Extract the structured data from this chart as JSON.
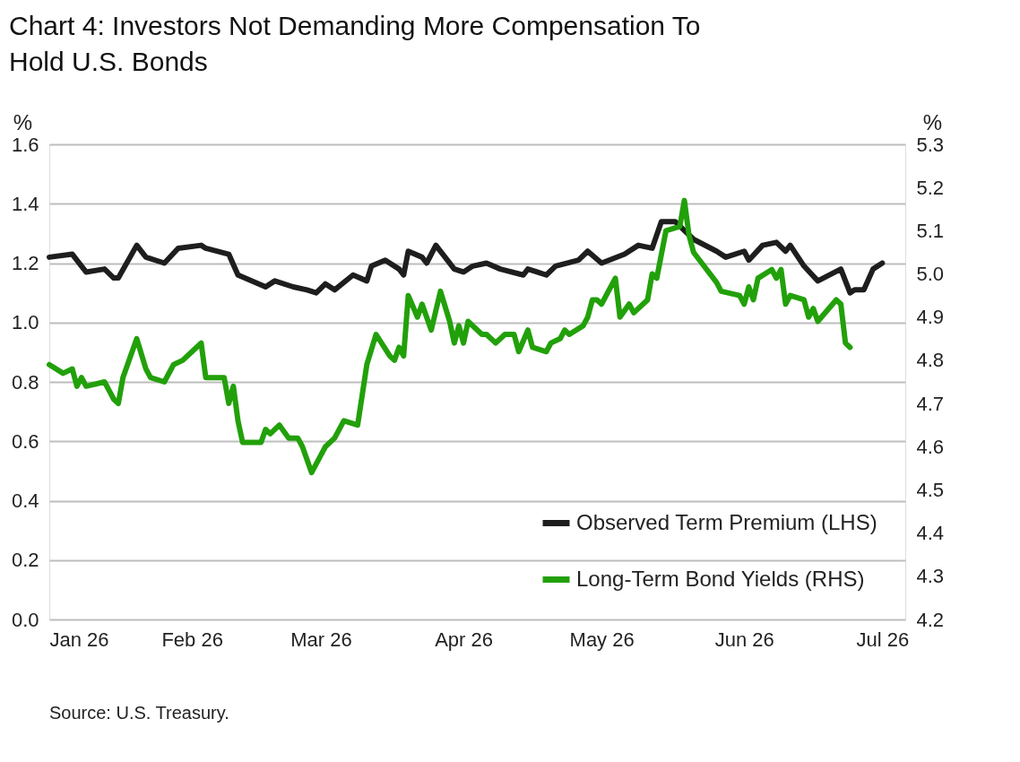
{
  "chart_data": {
    "type": "line",
    "title": "Chart 4: Investors Not Demanding More Compensation To Hold U.S. Bonds",
    "ylabel": "%",
    "y2label": "%",
    "annotations": [
      "Source: U.S. Treasury."
    ],
    "xlim": [
      "2026-01-01",
      "2026-07-06"
    ],
    "xticks": [
      {
        "value": "2026-01-01",
        "label": "Jan 26"
      },
      {
        "value": "2026-02-01",
        "label": "Feb 26"
      },
      {
        "value": "2026-03-01",
        "label": "Mar 26"
      },
      {
        "value": "2026-04-01",
        "label": "Apr 26"
      },
      {
        "value": "2026-05-01",
        "label": "May 26"
      },
      {
        "value": "2026-06-01",
        "label": "Jun 26"
      },
      {
        "value": "2026-07-01",
        "label": "Jul 26"
      }
    ],
    "ylim": [
      0,
      1.6
    ],
    "yticks": [
      {
        "value": 0,
        "label": "0.0"
      },
      0.2,
      0.4,
      0.6,
      0.8,
      {
        "value": 1,
        "label": "1.0"
      },
      1.2,
      1.4,
      1.6
    ],
    "y2lim": [
      4.2,
      5.3
    ],
    "y2ticks": [
      4.2,
      4.3,
      4.4,
      4.5,
      4.6,
      4.7,
      4.8,
      4.9,
      {
        "value": 5,
        "label": "5.0"
      },
      5.1,
      5.2,
      5.3
    ],
    "grid": "y",
    "legend": "bottom right",
    "line_style": "solid",
    "series": [
      {
        "name": "Observed Term Premium (LHS)",
        "color": "#1e1e1e",
        "type": "line",
        "x": [
          "2026-01-01",
          "2026-01-06",
          "2026-01-08",
          "2026-01-09",
          "2026-01-13",
          "2026-01-15",
          "2026-01-16",
          "2026-01-20",
          "2026-01-22",
          "2026-01-26",
          "2026-01-29",
          "2026-02-03",
          "2026-02-04",
          "2026-02-09",
          "2026-02-11",
          "2026-02-17",
          "2026-02-19",
          "2026-02-23",
          "2026-02-26",
          "2026-02-28",
          "2026-03-02",
          "2026-03-04",
          "2026-03-08",
          "2026-03-11",
          "2026-03-12",
          "2026-03-15",
          "2026-03-18",
          "2026-03-19",
          "2026-03-20",
          "2026-03-23",
          "2026-03-24",
          "2026-03-26",
          "2026-03-30",
          "2026-04-01",
          "2026-04-03",
          "2026-04-06",
          "2026-04-09",
          "2026-04-14",
          "2026-04-15",
          "2026-04-17",
          "2026-04-19",
          "2026-04-21",
          "2026-04-26",
          "2026-04-28",
          "2026-05-01",
          "2026-05-06",
          "2026-05-09",
          "2026-05-12",
          "2026-05-14",
          "2026-05-17",
          "2026-05-21",
          "2026-05-26",
          "2026-05-28",
          "2026-06-01",
          "2026-06-02",
          "2026-06-05",
          "2026-06-08",
          "2026-06-10",
          "2026-06-11",
          "2026-06-14",
          "2026-06-17",
          "2026-06-22",
          "2026-06-24",
          "2026-06-25",
          "2026-06-27",
          "2026-06-29",
          "2026-07-01"
        ],
        "values": [
          1.22,
          1.23,
          1.19,
          1.17,
          1.18,
          1.15,
          1.15,
          1.26,
          1.22,
          1.2,
          1.25,
          1.26,
          1.25,
          1.23,
          1.16,
          1.12,
          1.14,
          1.12,
          1.11,
          1.1,
          1.13,
          1.11,
          1.16,
          1.14,
          1.19,
          1.21,
          1.18,
          1.16,
          1.24,
          1.22,
          1.2,
          1.26,
          1.18,
          1.17,
          1.19,
          1.2,
          1.18,
          1.16,
          1.18,
          1.17,
          1.16,
          1.19,
          1.21,
          1.24,
          1.2,
          1.23,
          1.26,
          1.25,
          1.34,
          1.34,
          1.28,
          1.24,
          1.22,
          1.24,
          1.21,
          1.26,
          1.27,
          1.24,
          1.26,
          1.19,
          1.14,
          1.18,
          1.1,
          1.11,
          1.11,
          1.18,
          1.2
        ]
      },
      {
        "name": "Long-Term Bond Yields (RHS)",
        "color": "#22a00a",
        "type": "line",
        "axis": "y2",
        "x": [
          "2026-01-01",
          "2026-01-04",
          "2026-01-06",
          "2026-01-07",
          "2026-01-08",
          "2026-01-09",
          "2026-01-13",
          "2026-01-14",
          "2026-01-15",
          "2026-01-16",
          "2026-01-17",
          "2026-01-20",
          "2026-01-22",
          "2026-01-23",
          "2026-01-26",
          "2026-01-28",
          "2026-01-30",
          "2026-02-01",
          "2026-02-02",
          "2026-02-03",
          "2026-02-04",
          "2026-02-08",
          "2026-02-09",
          "2026-02-10",
          "2026-02-11",
          "2026-02-12",
          "2026-02-16",
          "2026-02-17",
          "2026-02-18",
          "2026-02-20",
          "2026-02-22",
          "2026-02-24",
          "2026-02-25",
          "2026-02-27",
          "2026-03-01",
          "2026-03-02",
          "2026-03-04",
          "2026-03-06",
          "2026-03-09",
          "2026-03-10",
          "2026-03-11",
          "2026-03-13",
          "2026-03-16",
          "2026-03-17",
          "2026-03-18",
          "2026-03-19",
          "2026-03-20",
          "2026-03-22",
          "2026-03-23",
          "2026-03-25",
          "2026-03-27",
          "2026-03-29",
          "2026-03-30",
          "2026-03-31",
          "2026-04-01",
          "2026-04-02",
          "2026-04-05",
          "2026-04-06",
          "2026-04-08",
          "2026-04-10",
          "2026-04-12",
          "2026-04-13",
          "2026-04-15",
          "2026-04-16",
          "2026-04-19",
          "2026-04-20",
          "2026-04-22",
          "2026-04-23",
          "2026-04-24",
          "2026-04-27",
          "2026-04-28",
          "2026-04-29",
          "2026-04-30",
          "2026-05-01",
          "2026-05-04",
          "2026-05-05",
          "2026-05-07",
          "2026-05-08",
          "2026-05-11",
          "2026-05-12",
          "2026-05-13",
          "2026-05-15",
          "2026-05-18",
          "2026-05-19",
          "2026-05-20",
          "2026-05-21",
          "2026-05-26",
          "2026-05-27",
          "2026-05-31",
          "2026-06-01",
          "2026-06-02",
          "2026-06-03",
          "2026-06-04",
          "2026-06-07",
          "2026-06-08",
          "2026-06-09",
          "2026-06-10",
          "2026-06-11",
          "2026-06-14",
          "2026-06-15",
          "2026-06-16",
          "2026-06-17",
          "2026-06-21",
          "2026-06-22",
          "2026-06-23",
          "2026-06-24"
        ],
        "values": [
          4.79,
          4.77,
          4.78,
          4.74,
          4.76,
          4.74,
          4.75,
          4.73,
          4.71,
          4.7,
          4.76,
          4.85,
          4.78,
          4.76,
          4.75,
          4.79,
          4.8,
          4.82,
          4.83,
          4.84,
          4.76,
          4.76,
          4.7,
          4.74,
          4.66,
          4.61,
          4.61,
          4.64,
          4.63,
          4.65,
          4.62,
          4.62,
          4.6,
          4.54,
          4.58,
          4.6,
          4.62,
          4.66,
          4.65,
          4.72,
          4.79,
          4.86,
          4.81,
          4.8,
          4.83,
          4.81,
          4.95,
          4.9,
          4.93,
          4.87,
          4.96,
          4.89,
          4.84,
          4.88,
          4.84,
          4.89,
          4.86,
          4.86,
          4.84,
          4.86,
          4.86,
          4.82,
          4.87,
          4.83,
          4.82,
          4.84,
          4.85,
          4.87,
          4.86,
          4.88,
          4.9,
          4.94,
          4.94,
          4.93,
          4.99,
          4.9,
          4.93,
          4.91,
          4.94,
          5.0,
          4.99,
          5.1,
          5.11,
          5.17,
          5.09,
          5.05,
          4.98,
          4.96,
          4.95,
          4.93,
          4.97,
          4.94,
          4.99,
          5.01,
          4.99,
          5.01,
          4.93,
          4.95,
          4.94,
          4.9,
          4.92,
          4.89,
          4.94,
          4.93,
          4.84,
          4.83
        ]
      }
    ]
  }
}
